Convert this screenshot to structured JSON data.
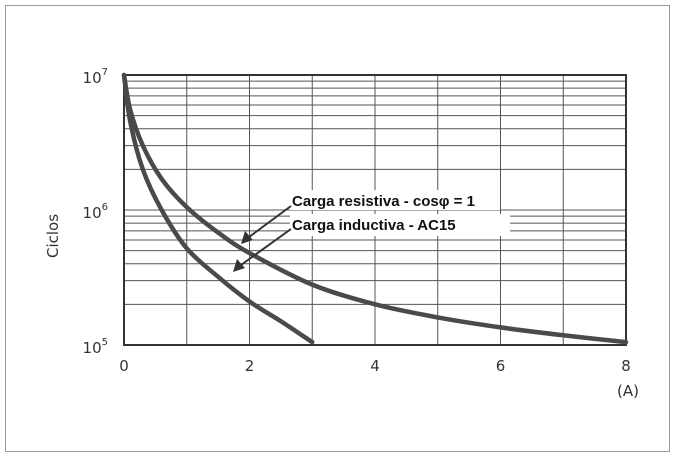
{
  "chart_data": {
    "type": "line",
    "ylabel": "Ciclos",
    "xunit": "(A)",
    "x_ticks": [
      "0",
      "2",
      "4",
      "6",
      "8"
    ],
    "y_ticks": [
      {
        "base": "10",
        "exp": "7"
      },
      {
        "base": "10",
        "exp": "6"
      },
      {
        "base": "10",
        "exp": "5"
      }
    ],
    "xlim": [
      0,
      8
    ],
    "ylim": [
      100000,
      10000000
    ],
    "yscale": "log",
    "grid": true,
    "series": [
      {
        "name": "Carga resistiva - cosφ = 1",
        "x": [
          0,
          0.1,
          0.3,
          0.6,
          1.0,
          1.5,
          2.0,
          3.0,
          4.0,
          5.0,
          6.0,
          7.0,
          8.0
        ],
        "y": [
          10000000,
          5500000,
          3000000,
          1700000,
          1050000,
          680000,
          480000,
          280000,
          200000,
          160000,
          135000,
          118000,
          105000
        ]
      },
      {
        "name": "Carga inductiva - AC15",
        "x": [
          0,
          0.1,
          0.3,
          0.6,
          1.0,
          1.5,
          2.0,
          2.5,
          3.0
        ],
        "y": [
          10000000,
          4500000,
          2000000,
          1000000,
          520000,
          320000,
          210000,
          150000,
          105000
        ]
      }
    ],
    "annotations": [
      "Carga resistiva - cosφ = 1",
      "Carga inductiva - AC15"
    ],
    "colors": {
      "curve": "#4a4a4a",
      "grid": "#555555",
      "axis": "#333333"
    }
  }
}
